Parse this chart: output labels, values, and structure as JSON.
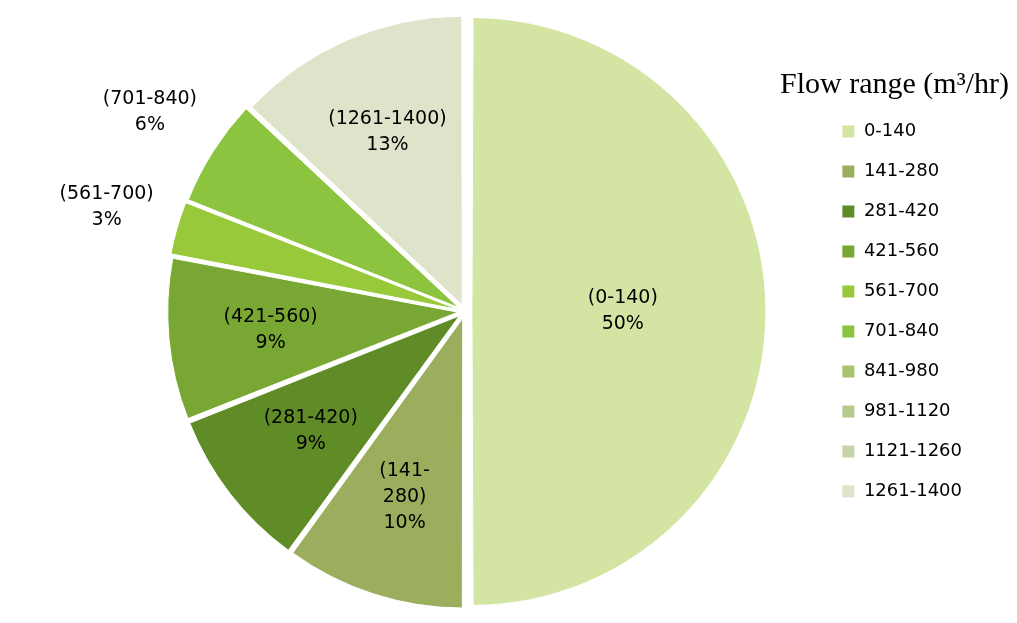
{
  "chart_data": {
    "type": "pie",
    "legend_title": "Flow range (m³/hr)",
    "categories": [
      "0-140",
      "141-280",
      "281-420",
      "421-560",
      "561-700",
      "701-840",
      "841-980",
      "981-1120",
      "1121-1260",
      "1261-1400"
    ],
    "values": [
      50,
      10,
      9,
      9,
      3,
      6,
      0,
      0,
      0,
      13
    ],
    "colors": [
      "#d4e5a3",
      "#9bae5e",
      "#5f8c26",
      "#78a833",
      "#97c93a",
      "#8cc43f",
      "#a6c46b",
      "#b6ca8c",
      "#c7d3a9",
      "#dde4c9"
    ],
    "value_labels": [
      "(0-140)\n50%",
      "(141-\n280)\n10%",
      "(281-420)\n9%",
      "(421-560)\n9%",
      "(561-700)\n3%",
      "(701-840)\n6%",
      null,
      null,
      null,
      "(1261-1400)\n13%"
    ],
    "legend": "right"
  }
}
